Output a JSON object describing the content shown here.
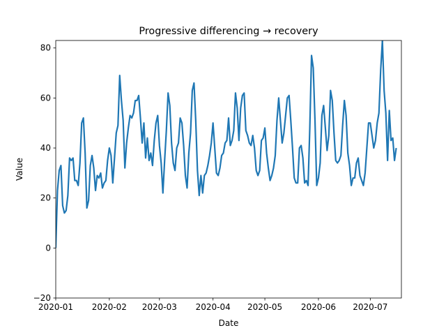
{
  "chart_data": {
    "type": "line",
    "title": "Progressive differencing → recovery",
    "xlabel": "Date",
    "ylabel": "Value",
    "xlim": [
      "2020-01-01",
      "2020-07-19"
    ],
    "ylim": [
      -20,
      83
    ],
    "x_ticks": [
      "2020-01-01",
      "2020-02-01",
      "2020-03-01",
      "2020-04-01",
      "2020-05-01",
      "2020-06-01",
      "2020-07-01"
    ],
    "x_tick_labels": [
      "2020-01",
      "2020-02",
      "2020-03",
      "2020-04",
      "2020-05",
      "2020-06",
      "2020-07"
    ],
    "y_ticks": [
      -20,
      0,
      20,
      40,
      60,
      80
    ],
    "y_tick_labels": [
      "−20",
      "0",
      "20",
      "40",
      "60",
      "80"
    ],
    "grid": false,
    "colors": {
      "line": "#1f77b4",
      "axes": "#000000",
      "background": "#ffffff"
    },
    "series": [
      {
        "start_date": "2020-01-01",
        "step": "1 day",
        "values": [
          0,
          23,
          31,
          33,
          17,
          14,
          15,
          21,
          36,
          35,
          36,
          27,
          27,
          25,
          34,
          50,
          52,
          38,
          16,
          19,
          33,
          37,
          32,
          23,
          29,
          28,
          30,
          24,
          26,
          27,
          35,
          40,
          37,
          26,
          36,
          46,
          49,
          69,
          59,
          51,
          32,
          42,
          48,
          53,
          52,
          54,
          59,
          59,
          61,
          52,
          42,
          50,
          36,
          44,
          35,
          38,
          33,
          43,
          50,
          53,
          41,
          34,
          22,
          35,
          47,
          62,
          57,
          42,
          34,
          31,
          40,
          42,
          52,
          50,
          41,
          29,
          24,
          38,
          46,
          63,
          66,
          51,
          31,
          21,
          29,
          22,
          29,
          30,
          33,
          37,
          42,
          50,
          40,
          30,
          29,
          32,
          37,
          38,
          42,
          43,
          52,
          41,
          43,
          47,
          62,
          56,
          43,
          56,
          61,
          62,
          47,
          45,
          42,
          41,
          45,
          40,
          31,
          29,
          31,
          43,
          44,
          48,
          38,
          32,
          27,
          29,
          32,
          37,
          51,
          60,
          51,
          42,
          46,
          53,
          60,
          61,
          51,
          40,
          28,
          26,
          26,
          40,
          41,
          36,
          26,
          27,
          25,
          48,
          77,
          72,
          51,
          25,
          28,
          34,
          53,
          57,
          48,
          39,
          45,
          63,
          59,
          46,
          35,
          34,
          35,
          37,
          49,
          59,
          53,
          38,
          33,
          25,
          28,
          28,
          34,
          36,
          29,
          27,
          25,
          30,
          40,
          50,
          50,
          45,
          40,
          43,
          50,
          54,
          71,
          83,
          63,
          54,
          35,
          55,
          43,
          44,
          35,
          40
        ]
      }
    ]
  }
}
